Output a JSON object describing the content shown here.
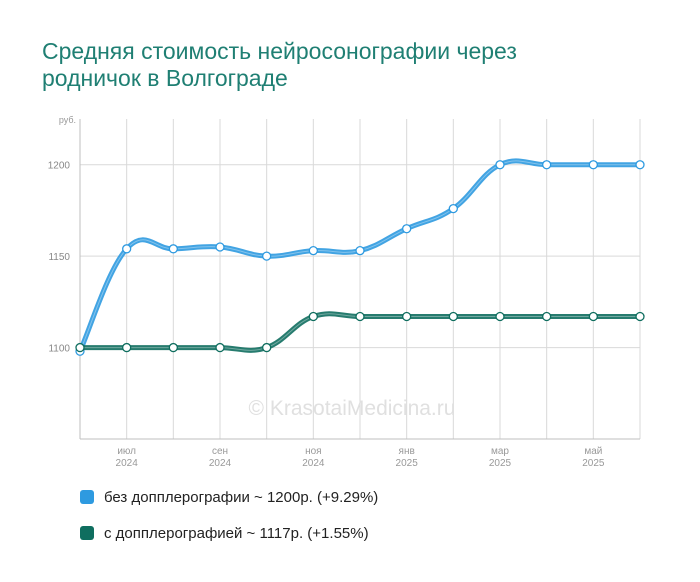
{
  "title_lines": [
    "Средняя стоимость нейросонографии через",
    "родничок в Волгограде"
  ],
  "watermark": "© KrasotaiMedicina.ru",
  "chart_data": {
    "type": "line",
    "ylabel": "руб.",
    "ylim": [
      1050,
      1225
    ],
    "yticks": [
      1100,
      1150,
      1200
    ],
    "x": [
      "2024-05",
      "2024-06",
      "2024-07",
      "2024-08",
      "2024-09",
      "2024-10",
      "2024-11",
      "2024-12",
      "2025-01",
      "2025-02",
      "2025-03",
      "2025-04",
      "2025-05"
    ],
    "xtick_labels": [
      {
        "x": "2024-06",
        "month": "июл",
        "year": "2024"
      },
      {
        "x": "2024-08",
        "month": "сен",
        "year": "2024"
      },
      {
        "x": "2024-10",
        "month": "ноя",
        "year": "2024"
      },
      {
        "x": "2025-00",
        "month": "янв",
        "year": "2025"
      },
      {
        "x": "2025-02",
        "month": "мар",
        "year": "2025"
      },
      {
        "x": "2025-04",
        "month": "май",
        "year": "2025"
      }
    ],
    "series": [
      {
        "name": "без допплерографии ~ 1200р. (+9.29%)",
        "color": "#2e9ae0",
        "values": [
          1098,
          1154,
          1154,
          1155,
          1150,
          1153,
          1153,
          1165,
          1176,
          1200,
          1200,
          1200,
          1200
        ]
      },
      {
        "name": "с допплерографией ~ 1117р. (+1.55%)",
        "color": "#0f6e5f",
        "values": [
          1100,
          1100,
          1100,
          1100,
          1100,
          1117,
          1117,
          1117,
          1117,
          1117,
          1117,
          1117,
          1117
        ]
      }
    ],
    "grid": true
  }
}
